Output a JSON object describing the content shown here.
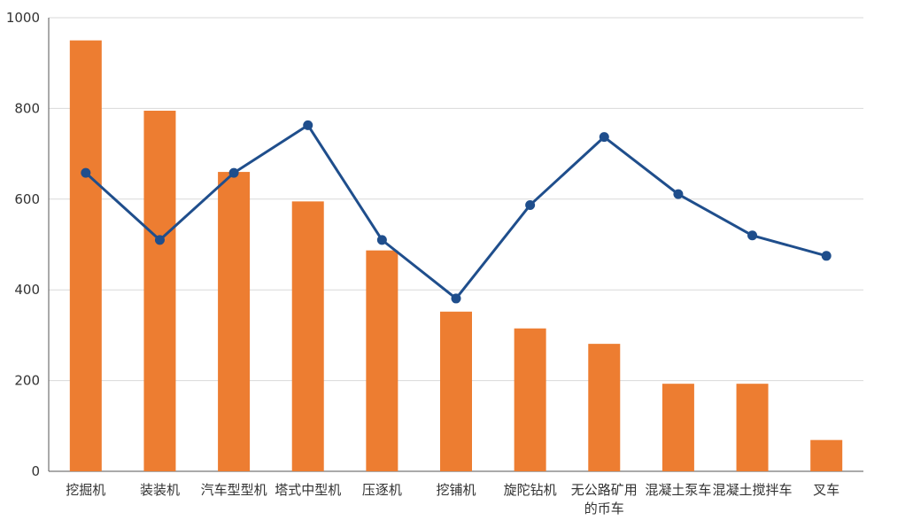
{
  "chart_data": {
    "type": "bar",
    "categories": [
      "挖掘机",
      "装装机",
      "汽车型型机",
      "塔式中型机",
      "压逐机",
      "挖铺机",
      "旋陀钻机",
      "无公路矿用的币车",
      "混凝土泵车",
      "混凝土搅拌车",
      "叉车"
    ],
    "category_label_lines": [
      [
        "挖掘机"
      ],
      [
        "装装机"
      ],
      [
        "汽车型型机"
      ],
      [
        "塔式中型机"
      ],
      [
        "压逐机"
      ],
      [
        "挖铺机"
      ],
      [
        "旋陀钻机"
      ],
      [
        "无公路矿用",
        "的币车"
      ],
      [
        "混凝土泵车"
      ],
      [
        "混凝土搅拌车"
      ],
      [
        "叉车"
      ]
    ],
    "series": [
      {
        "type": "bar",
        "values": [
          950,
          795,
          660,
          595,
          487,
          352,
          315,
          281,
          193,
          193,
          69
        ]
      },
      {
        "type": "line",
        "values": [
          658,
          510,
          658,
          763,
          510,
          381,
          587,
          737,
          611,
          520,
          475
        ]
      }
    ],
    "ylim": [
      0,
      1000
    ],
    "yticks": [
      0,
      200,
      400,
      600,
      800,
      1000
    ],
    "grid": true,
    "colors": {
      "bar": "#ED7D31",
      "line": "#1F4E8C",
      "grid": "#D9D9D9",
      "axis": "#555555"
    }
  }
}
